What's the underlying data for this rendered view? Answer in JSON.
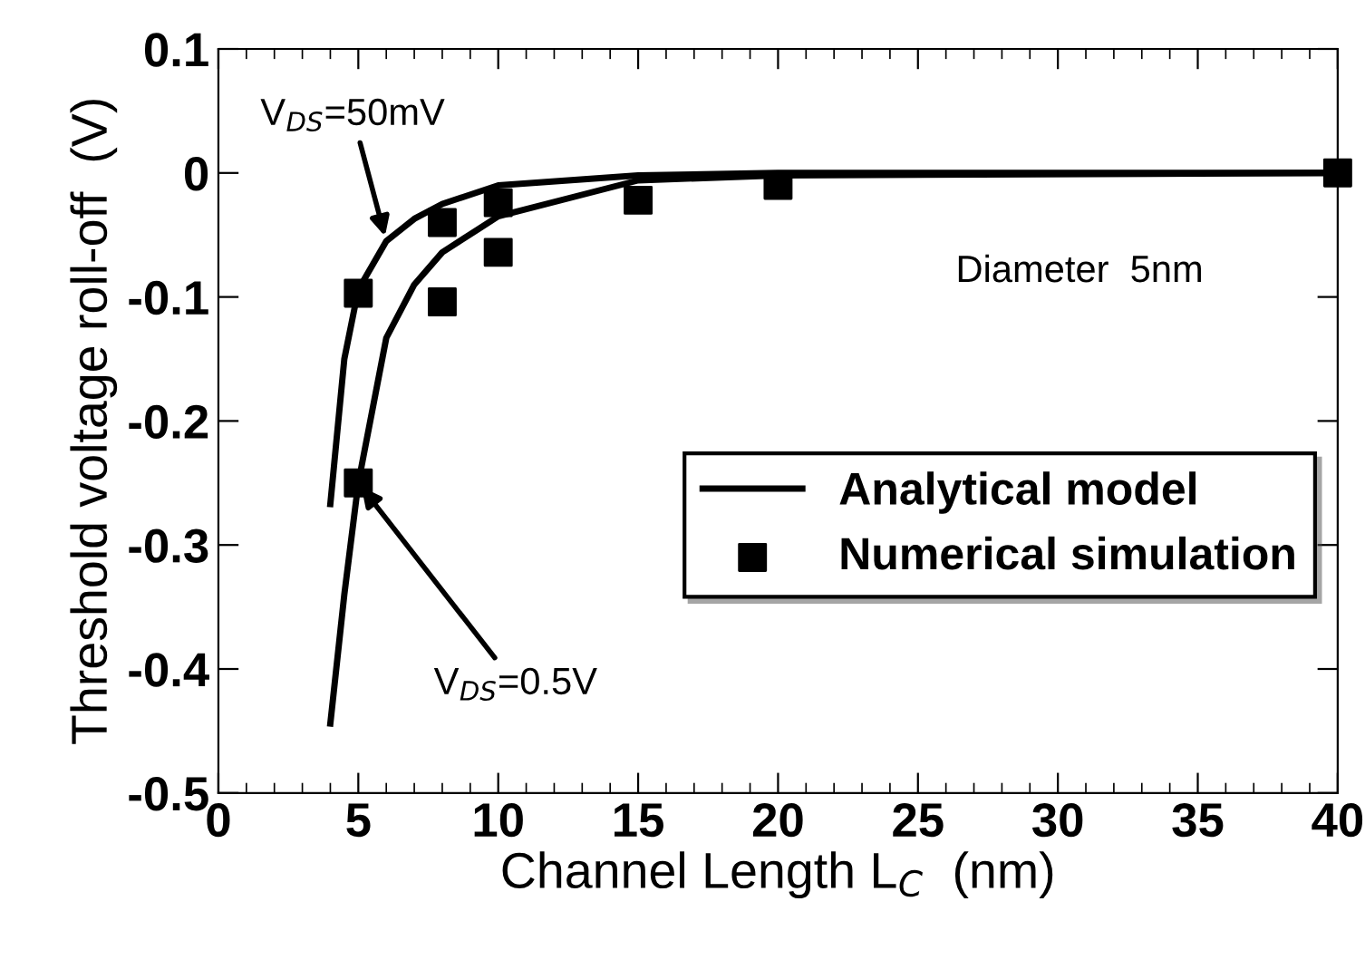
{
  "chart_data": {
    "type": "line",
    "xlabel": "Channel Length L$_{C}$  (nm)",
    "ylabel": "Threshold voltage roll-off  (V)",
    "xlim": [
      0,
      40
    ],
    "ylim": [
      -0.5,
      0.1
    ],
    "xticks": [
      0,
      5,
      10,
      15,
      20,
      25,
      30,
      35,
      40
    ],
    "yticks": [
      -0.5,
      -0.4,
      -0.3,
      -0.2,
      -0.1,
      0,
      0.1
    ],
    "series": [
      {
        "name": "Analytical model",
        "color": "#000000",
        "x": [
          4,
          4.5,
          5,
          6,
          7,
          8,
          10,
          15,
          20,
          40
        ],
        "values": [
          -0.444,
          -0.34,
          -0.25,
          -0.133,
          -0.09,
          -0.064,
          -0.035,
          -0.006,
          -0.002,
          0
        ]
      },
      {
        "color": "#000000",
        "x": [
          4,
          4.5,
          5,
          6,
          7,
          8,
          10,
          15,
          20,
          40
        ],
        "values": [
          -0.267,
          -0.15,
          -0.094,
          -0.055,
          -0.037,
          -0.025,
          -0.01,
          -0.002,
          0,
          0
        ]
      },
      {
        "name": "Numerical simulation",
        "type": "scatter",
        "color": "#000000",
        "marker": "square",
        "x": [
          5,
          5,
          8,
          8,
          10,
          10,
          15,
          20,
          40
        ],
        "values": [
          -0.097,
          -0.25,
          -0.04,
          -0.104,
          -0.024,
          -0.064,
          -0.022,
          -0.01,
          0
        ]
      }
    ],
    "annotations": [
      {
        "text": "V$_{DS}$=50mV",
        "x": 6,
        "y": -0.055
      },
      {
        "text": "V$_{DS}$=0.5V",
        "x": 5,
        "y": -0.25
      },
      "Diameter  5nm"
    ],
    "legend": "right",
    "grid": false
  }
}
